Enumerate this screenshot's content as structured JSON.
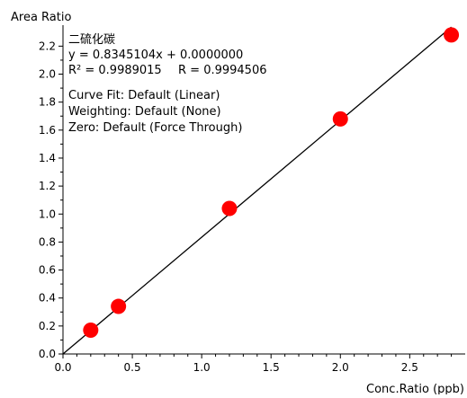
{
  "chart_data": {
    "type": "scatter",
    "title": "",
    "xlabel": "Conc.Ratio (ppb)",
    "ylabel": "Area Ratio",
    "xlim": [
      0.0,
      2.9
    ],
    "ylim": [
      0.0,
      2.35
    ],
    "xticks": [
      "0.0",
      "0.5",
      "1.0",
      "1.5",
      "2.0",
      "2.5"
    ],
    "yticks": [
      "0.0",
      "0.2",
      "0.4",
      "0.6",
      "0.8",
      "1.0",
      "1.2",
      "1.4",
      "1.6",
      "1.8",
      "2.0",
      "2.2"
    ],
    "grid": false,
    "series": [
      {
        "type": "scatter",
        "color": "#ff0000",
        "points": [
          {
            "x": 0.2,
            "y": 0.17
          },
          {
            "x": 0.4,
            "y": 0.34
          },
          {
            "x": 1.2,
            "y": 1.04
          },
          {
            "x": 2.0,
            "y": 1.68
          },
          {
            "x": 2.8,
            "y": 2.28
          }
        ]
      },
      {
        "type": "line",
        "color": "#000000",
        "slope": 0.8345104,
        "intercept": 0.0,
        "x_range": [
          0.0,
          2.8
        ]
      }
    ],
    "annotations": {
      "compound": "二硫化碳",
      "equation": "y = 0.8345104x + 0.0000000",
      "r2": "R² = 0.9989015",
      "r": "R = 0.9994506",
      "curve_fit": "Curve Fit: Default (Linear)",
      "weighting": "Weighting: Default (None)",
      "zero": "Zero: Default (Force Through)"
    }
  }
}
